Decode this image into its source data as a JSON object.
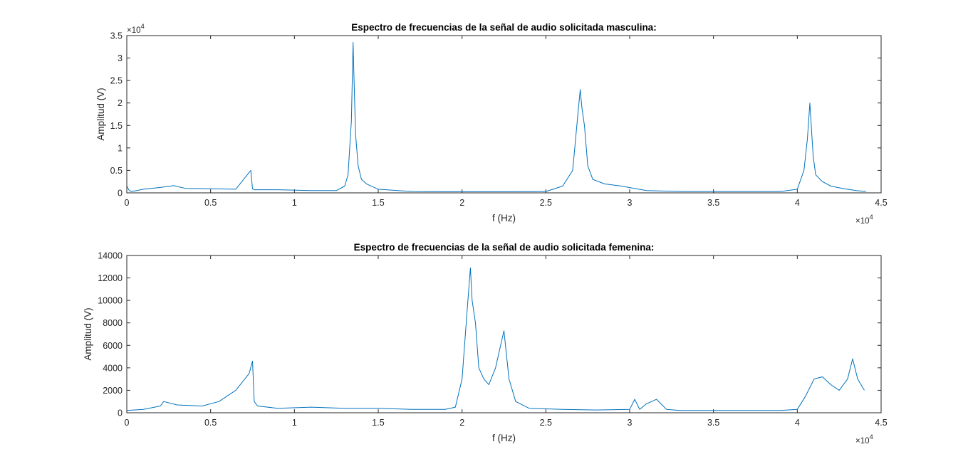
{
  "chart_data": [
    {
      "type": "line",
      "title": "Espectro de frecuencias de la señal de audio solicitada masculina:",
      "xlabel": "f (Hz)",
      "ylabel": "Amplitud (V)",
      "xlim": [
        0,
        45000
      ],
      "ylim": [
        0,
        35000
      ],
      "x_ticks": [
        "0",
        "0.5",
        "1",
        "1.5",
        "2",
        "2.5",
        "3",
        "3.5",
        "4",
        "4.5"
      ],
      "y_ticks": [
        "0",
        "0.5",
        "1",
        "1.5",
        "2",
        "2.5",
        "3",
        "3.5"
      ],
      "x_exponent": {
        "base": "×10",
        "exp": "4"
      },
      "y_exponent": {
        "base": "×10",
        "exp": "4"
      },
      "grid": false,
      "color": "#0072BD",
      "series": [
        {
          "x": [
            0,
            150,
            300,
            1000,
            2000,
            2800,
            3500,
            5000,
            6500,
            7400,
            7500,
            7600,
            9000,
            11000,
            12500,
            13000,
            13200,
            13400,
            13500,
            13550,
            13650,
            13800,
            14000,
            14300,
            15000,
            17000,
            19000,
            21000,
            23000,
            25000,
            26000,
            26600,
            26900,
            27050,
            27150,
            27300,
            27500,
            27800,
            28500,
            29500,
            31000,
            33000,
            35000,
            37000,
            39000,
            40000,
            40400,
            40600,
            40750,
            40850,
            40950,
            41100,
            41500,
            42000,
            42800,
            43500,
            44100
          ],
          "y": [
            1500,
            500,
            300,
            800,
            1200,
            1600,
            1000,
            900,
            800,
            5000,
            900,
            700,
            700,
            500,
            500,
            1500,
            4000,
            16000,
            33500,
            26000,
            13000,
            6000,
            3000,
            2000,
            800,
            300,
            250,
            250,
            250,
            300,
            1500,
            5000,
            17000,
            23000,
            19000,
            15000,
            6000,
            3000,
            2000,
            1500,
            500,
            300,
            300,
            300,
            300,
            800,
            5000,
            12000,
            20000,
            14000,
            8000,
            4000,
            2500,
            1500,
            900,
            500,
            300
          ]
        }
      ]
    },
    {
      "type": "line",
      "title": "Espectro de frecuencias de la señal de audio solicitada femenina:",
      "xlabel": "f (Hz)",
      "ylabel": "Amplitud (V)",
      "xlim": [
        0,
        45000
      ],
      "ylim": [
        0,
        14000
      ],
      "x_ticks": [
        "0",
        "0.5",
        "1",
        "1.5",
        "2",
        "2.5",
        "3",
        "3.5",
        "4",
        "4.5"
      ],
      "y_ticks": [
        "0",
        "2000",
        "4000",
        "6000",
        "8000",
        "10000",
        "12000",
        "14000"
      ],
      "x_exponent": {
        "base": "×10",
        "exp": "4"
      },
      "y_exponent": null,
      "grid": false,
      "color": "#0072BD",
      "series": [
        {
          "x": [
            0,
            1000,
            2000,
            2200,
            3000,
            4500,
            5500,
            6500,
            7300,
            7500,
            7600,
            7800,
            9000,
            11000,
            13000,
            15000,
            17000,
            19000,
            19600,
            20000,
            20300,
            20500,
            20600,
            20800,
            21000,
            21300,
            21600,
            22000,
            22300,
            22500,
            22800,
            23200,
            24000,
            26000,
            28000,
            30000,
            30300,
            30600,
            31000,
            31600,
            32200,
            33000,
            35000,
            37000,
            39000,
            40000,
            40500,
            41000,
            41500,
            42000,
            42500,
            43000,
            43300,
            43600,
            44000
          ],
          "y": [
            200,
            300,
            600,
            1000,
            700,
            600,
            1000,
            2000,
            3500,
            4600,
            1000,
            600,
            400,
            500,
            400,
            400,
            300,
            300,
            500,
            3000,
            9000,
            12900,
            10000,
            8000,
            4000,
            3000,
            2500,
            4000,
            6000,
            7300,
            3000,
            1000,
            400,
            300,
            250,
            300,
            1200,
            300,
            800,
            1200,
            300,
            200,
            200,
            200,
            200,
            300,
            1500,
            3000,
            3200,
            2500,
            2000,
            3000,
            4800,
            3000,
            2000
          ]
        }
      ]
    }
  ]
}
